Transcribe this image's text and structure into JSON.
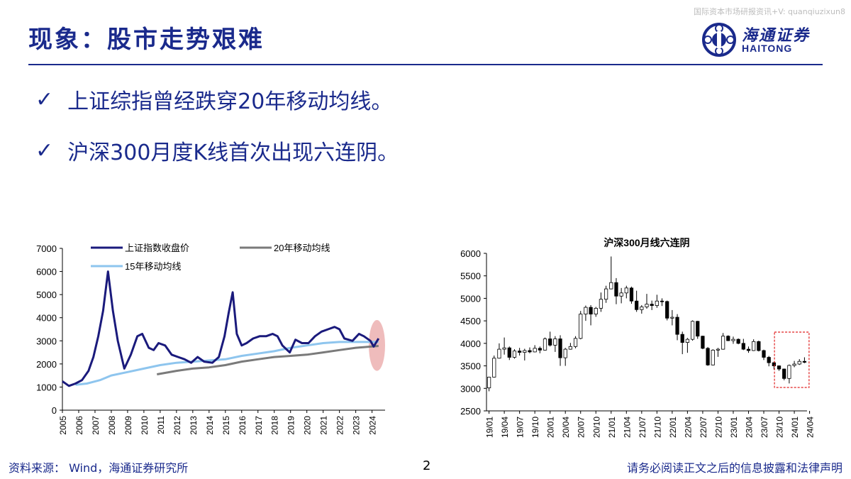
{
  "watermark": "国际资本市场研报资讯+V: quanqiuzixun8",
  "title": "现象：股市走势艰难",
  "logo": {
    "cn": "海通证券",
    "en": "HAITONG"
  },
  "bullets": [
    {
      "icon": "check-icon",
      "text": "上证综指曾经跌穿20年移动均线。"
    },
    {
      "icon": "check-icon",
      "text": "沪深300月度K线首次出现六连阴。"
    }
  ],
  "colors": {
    "brand": "#1a2a8c",
    "index_line": "#1a1a7c",
    "ma20": "#7a7a7a",
    "ma15": "#8ec5ee",
    "highlight_fill": "#e8a0a0",
    "highlight_box": "#e02020"
  },
  "footer": {
    "source": "资料来源：  Wind，海通证券研究所",
    "page": "2",
    "disclaimer": "请务必阅读正文之后的信息披露和法律声明"
  },
  "chart_data": [
    {
      "type": "line",
      "title": "",
      "legend": [
        "上证指数收盘价",
        "20年移动均线",
        "15年移动均线"
      ],
      "x_ticks": [
        "2005",
        "2006",
        "2007",
        "2008",
        "2009",
        "2010",
        "2011",
        "2012",
        "2013",
        "2014",
        "2015",
        "2016",
        "2017",
        "2018",
        "2019",
        "2020",
        "2021",
        "2022",
        "2023",
        "2024"
      ],
      "y_ticks": [
        "0",
        "1000",
        "2000",
        "3000",
        "4000",
        "5000",
        "6000",
        "7000"
      ],
      "ylim": [
        0,
        7000
      ],
      "xlim": [
        2005.0,
        2024.8
      ],
      "legend_position": "top",
      "series": [
        {
          "name": "上证指数收盘价",
          "x": [
            2005.0,
            2005.4,
            2005.8,
            2006.2,
            2006.6,
            2006.9,
            2007.2,
            2007.5,
            2007.8,
            2008.1,
            2008.4,
            2008.8,
            2009.2,
            2009.6,
            2009.9,
            2010.3,
            2010.6,
            2010.9,
            2011.3,
            2011.7,
            2012.1,
            2012.5,
            2012.9,
            2013.3,
            2013.7,
            2014.2,
            2014.6,
            2014.95,
            2015.2,
            2015.45,
            2015.7,
            2016.0,
            2016.3,
            2016.7,
            2017.1,
            2017.5,
            2017.9,
            2018.2,
            2018.5,
            2018.95,
            2019.3,
            2019.7,
            2020.1,
            2020.5,
            2020.9,
            2021.3,
            2021.7,
            2022.0,
            2022.3,
            2022.8,
            2023.2,
            2023.5,
            2023.9,
            2024.1,
            2024.4
          ],
          "values": [
            1250,
            1050,
            1150,
            1300,
            1700,
            2300,
            3200,
            4300,
            6000,
            4300,
            3000,
            1800,
            2400,
            3200,
            3300,
            2700,
            2600,
            2900,
            2800,
            2400,
            2300,
            2200,
            2050,
            2300,
            2100,
            2050,
            2300,
            3200,
            4200,
            5100,
            3300,
            2800,
            2900,
            3100,
            3200,
            3200,
            3300,
            3200,
            2800,
            2500,
            3050,
            2900,
            2900,
            3200,
            3400,
            3500,
            3600,
            3500,
            3100,
            3000,
            3300,
            3200,
            3000,
            2750,
            3100
          ]
        },
        {
          "name": "20年移动均线",
          "x": [
            2010.8,
            2012,
            2013,
            2014,
            2015,
            2016,
            2017,
            2018,
            2019,
            2020,
            2021,
            2022,
            2023,
            2024.4
          ],
          "values": [
            1550,
            1700,
            1800,
            1850,
            1950,
            2100,
            2200,
            2300,
            2350,
            2400,
            2500,
            2600,
            2700,
            2780
          ]
        },
        {
          "name": "15年移动均线",
          "x": [
            2005.8,
            2006.5,
            2007.3,
            2008,
            2009,
            2010,
            2011,
            2012,
            2013,
            2014,
            2015,
            2016,
            2017,
            2018,
            2019,
            2020,
            2021,
            2022,
            2023,
            2024.4
          ],
          "values": [
            1100,
            1150,
            1300,
            1500,
            1650,
            1800,
            1950,
            2050,
            2100,
            2150,
            2200,
            2350,
            2450,
            2550,
            2700,
            2800,
            2900,
            2950,
            2950,
            2950
          ]
        }
      ],
      "annotations": [
        {
          "type": "ellipse-highlight",
          "x_from": 2023.8,
          "x_to": 2024.8,
          "y_from": 1700,
          "y_to": 3900
        }
      ]
    },
    {
      "type": "candlestick",
      "title": "沪深300月线六连阴",
      "x_ticks": [
        "19/01",
        "19/04",
        "19/07",
        "19/10",
        "20/01",
        "20/04",
        "20/07",
        "20/10",
        "21/01",
        "21/04",
        "21/07",
        "21/10",
        "22/01",
        "22/04",
        "22/07",
        "22/10",
        "23/01",
        "23/04",
        "23/07",
        "23/10",
        "24/01",
        "24/04"
      ],
      "y_ticks": [
        "2500",
        "3000",
        "3500",
        "4000",
        "4500",
        "5000",
        "5500",
        "6000"
      ],
      "ylim": [
        2500,
        6000
      ],
      "candles": [
        {
          "o": 3010,
          "c": 3250,
          "h": 3260,
          "l": 2935
        },
        {
          "o": 3250,
          "c": 3670,
          "h": 3730,
          "l": 3240
        },
        {
          "o": 3670,
          "c": 3870,
          "h": 4000,
          "l": 3660
        },
        {
          "o": 3870,
          "c": 3900,
          "h": 4130,
          "l": 3750
        },
        {
          "o": 3900,
          "c": 3690,
          "h": 3930,
          "l": 3630
        },
        {
          "o": 3690,
          "c": 3830,
          "h": 3870,
          "l": 3660
        },
        {
          "o": 3830,
          "c": 3800,
          "h": 3900,
          "l": 3730
        },
        {
          "o": 3800,
          "c": 3840,
          "h": 3880,
          "l": 3620
        },
        {
          "o": 3840,
          "c": 3810,
          "h": 3910,
          "l": 3780
        },
        {
          "o": 3810,
          "c": 3890,
          "h": 3960,
          "l": 3800
        },
        {
          "o": 3890,
          "c": 3850,
          "h": 3930,
          "l": 3780
        },
        {
          "o": 3850,
          "c": 4100,
          "h": 4130,
          "l": 3840
        },
        {
          "o": 4100,
          "c": 3960,
          "h": 4260,
          "l": 3930
        },
        {
          "o": 3960,
          "c": 4100,
          "h": 4160,
          "l": 3810
        },
        {
          "o": 4100,
          "c": 3680,
          "h": 4180,
          "l": 3500
        },
        {
          "o": 3680,
          "c": 3870,
          "h": 3900,
          "l": 3500
        },
        {
          "o": 3870,
          "c": 3930,
          "h": 4010,
          "l": 3860
        },
        {
          "o": 3930,
          "c": 4110,
          "h": 4160,
          "l": 3890
        },
        {
          "o": 4110,
          "c": 4650,
          "h": 4720,
          "l": 4090
        },
        {
          "o": 4650,
          "c": 4800,
          "h": 4840,
          "l": 4500
        },
        {
          "o": 4800,
          "c": 4650,
          "h": 4850,
          "l": 4400
        },
        {
          "o": 4650,
          "c": 4780,
          "h": 4810,
          "l": 4590
        },
        {
          "o": 4780,
          "c": 4980,
          "h": 5130,
          "l": 4700
        },
        {
          "o": 4980,
          "c": 5210,
          "h": 5280,
          "l": 4900
        },
        {
          "o": 5210,
          "c": 5350,
          "h": 5930,
          "l": 5200
        },
        {
          "o": 5350,
          "c": 5050,
          "h": 5450,
          "l": 4870
        },
        {
          "o": 5050,
          "c": 5120,
          "h": 5230,
          "l": 4890
        },
        {
          "o": 5120,
          "c": 5230,
          "h": 5280,
          "l": 5000
        },
        {
          "o": 5230,
          "c": 4940,
          "h": 5260,
          "l": 4880
        },
        {
          "o": 4940,
          "c": 4750,
          "h": 5170,
          "l": 4700
        },
        {
          "o": 4750,
          "c": 4810,
          "h": 4850,
          "l": 4660
        },
        {
          "o": 4810,
          "c": 4870,
          "h": 5100,
          "l": 4770
        },
        {
          "o": 4870,
          "c": 4840,
          "h": 4950,
          "l": 4740
        },
        {
          "o": 4840,
          "c": 4940,
          "h": 5080,
          "l": 4790
        },
        {
          "o": 4940,
          "c": 4930,
          "h": 5000,
          "l": 4830
        },
        {
          "o": 4930,
          "c": 4560,
          "h": 4950,
          "l": 4510
        },
        {
          "o": 4560,
          "c": 4580,
          "h": 4740,
          "l": 4400
        },
        {
          "o": 4580,
          "c": 4200,
          "h": 4650,
          "l": 4070
        },
        {
          "o": 4200,
          "c": 4020,
          "h": 4260,
          "l": 3760
        },
        {
          "o": 4020,
          "c": 4090,
          "h": 4120,
          "l": 3790
        },
        {
          "o": 4090,
          "c": 4490,
          "h": 4510,
          "l": 4060
        },
        {
          "o": 4490,
          "c": 4160,
          "h": 4500,
          "l": 4100
        },
        {
          "o": 4160,
          "c": 3890,
          "h": 4170,
          "l": 3870
        },
        {
          "o": 3890,
          "c": 3520,
          "h": 3920,
          "l": 3500
        },
        {
          "o": 3520,
          "c": 3850,
          "h": 3870,
          "l": 3510
        },
        {
          "o": 3850,
          "c": 3870,
          "h": 3900,
          "l": 3700
        },
        {
          "o": 3870,
          "c": 4160,
          "h": 4230,
          "l": 3860
        },
        {
          "o": 4160,
          "c": 4060,
          "h": 4180,
          "l": 4050
        },
        {
          "o": 4060,
          "c": 4090,
          "h": 4150,
          "l": 3990
        },
        {
          "o": 4090,
          "c": 4000,
          "h": 4110,
          "l": 3980
        },
        {
          "o": 4000,
          "c": 3870,
          "h": 4100,
          "l": 3850
        },
        {
          "o": 3870,
          "c": 3840,
          "h": 3930,
          "l": 3790
        },
        {
          "o": 3840,
          "c": 4040,
          "h": 4090,
          "l": 3830
        },
        {
          "o": 4040,
          "c": 3840,
          "h": 4060,
          "l": 3820
        },
        {
          "o": 3840,
          "c": 3690,
          "h": 3860,
          "l": 3630
        },
        {
          "o": 3690,
          "c": 3570,
          "h": 3720,
          "l": 3490
        },
        {
          "o": 3570,
          "c": 3500,
          "h": 3590,
          "l": 3420
        },
        {
          "o": 3500,
          "c": 3430,
          "h": 3510,
          "l": 3390
        },
        {
          "o": 3430,
          "c": 3220,
          "h": 3440,
          "l": 3180
        },
        {
          "o": 3220,
          "c": 3510,
          "h": 3530,
          "l": 3110
        },
        {
          "o": 3510,
          "c": 3540,
          "h": 3610,
          "l": 3470
        },
        {
          "o": 3540,
          "c": 3600,
          "h": 3650,
          "l": 3520
        },
        {
          "o": 3600,
          "c": 3580,
          "h": 3690,
          "l": 3560
        }
      ],
      "annotations": [
        {
          "type": "dashed-box",
          "index_from": 57,
          "index_to": 62,
          "y_from": 3020,
          "y_to": 4250
        }
      ]
    }
  ]
}
